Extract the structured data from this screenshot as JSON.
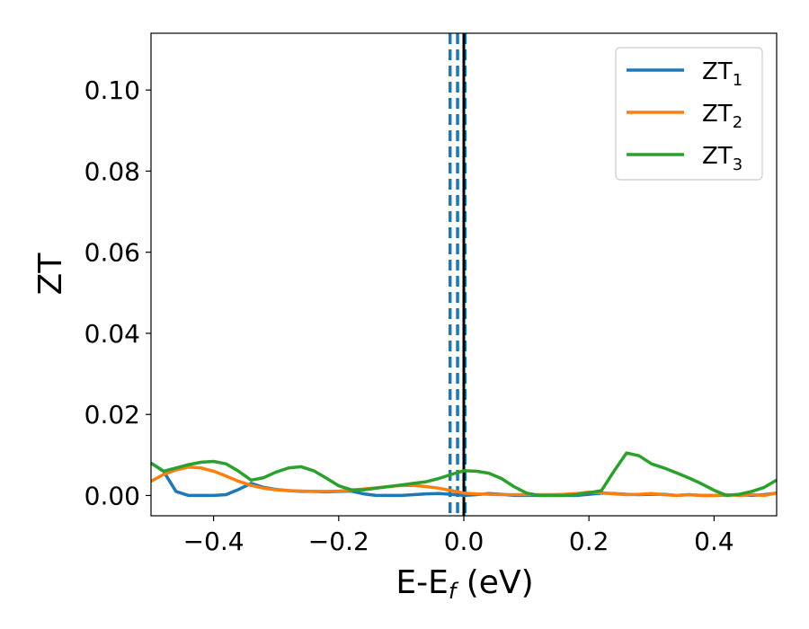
{
  "chart_data": {
    "type": "line",
    "title": "",
    "xlabel_main": "E-E",
    "xlabel_sub": "f",
    "xlabel_unit": " (eV)",
    "ylabel": "ZT",
    "xlim": [
      -0.5,
      0.5
    ],
    "ylim": [
      -0.005,
      0.114
    ],
    "xticks": [
      -0.4,
      -0.2,
      0.0,
      0.2,
      0.4
    ],
    "xtick_labels": [
      "−0.4",
      "−0.2",
      "0.0",
      "0.2",
      "0.4"
    ],
    "yticks": [
      0.0,
      0.02,
      0.04,
      0.06,
      0.08,
      0.1
    ],
    "ytick_labels": [
      "0.00",
      "0.02",
      "0.04",
      "0.06",
      "0.08",
      "0.10"
    ],
    "grid": false,
    "legend_position": "top-right",
    "vlines": [
      {
        "x": -0.022,
        "color": "#1f77b4",
        "style": "dashed"
      },
      {
        "x": -0.01,
        "color": "#1f77b4",
        "style": "dashed"
      },
      {
        "x": 0.002,
        "color": "#1f77b4",
        "style": "dashed"
      },
      {
        "x": 0.0,
        "color": "#000000",
        "style": "solid"
      }
    ],
    "series": [
      {
        "name_main": "ZT",
        "name_sub": "1",
        "color": "#1f77b4",
        "x": [
          -0.5,
          -0.48,
          -0.46,
          -0.44,
          -0.42,
          -0.4,
          -0.38,
          -0.36,
          -0.34,
          -0.32,
          -0.3,
          -0.28,
          -0.26,
          -0.24,
          -0.22,
          -0.2,
          -0.18,
          -0.16,
          -0.14,
          -0.12,
          -0.1,
          -0.08,
          -0.06,
          -0.04,
          -0.02,
          0.0,
          0.02,
          0.04,
          0.06,
          0.08,
          0.1,
          0.12,
          0.14,
          0.16,
          0.18,
          0.2,
          0.22,
          0.24,
          0.26,
          0.28,
          0.3,
          0.32,
          0.34,
          0.36,
          0.38,
          0.4,
          0.42,
          0.44,
          0.46,
          0.48,
          0.5
        ],
        "y": [
          0.008,
          0.006,
          0.001,
          0.0,
          0.0,
          0.0,
          0.0002,
          0.0015,
          0.003,
          0.002,
          0.0015,
          0.0012,
          0.001,
          0.001,
          0.0009,
          0.001,
          0.0011,
          0.0004,
          0.0,
          0.0,
          0.0,
          0.0002,
          0.0004,
          0.0005,
          0.0003,
          0.0,
          0.0002,
          0.0005,
          0.0003,
          0.0,
          0.0,
          0.0,
          0.0,
          0.0,
          0.0,
          0.0003,
          0.0006,
          0.0005,
          0.0003,
          0.0002,
          0.0003,
          0.0003,
          0.0,
          0.0002,
          0.0,
          0.0,
          0.0001,
          0.0002,
          0.0,
          0.0002,
          0.0006
        ]
      },
      {
        "name_main": "ZT",
        "name_sub": "2",
        "color": "#ff7f0e",
        "x": [
          -0.5,
          -0.48,
          -0.46,
          -0.44,
          -0.42,
          -0.4,
          -0.38,
          -0.36,
          -0.34,
          -0.32,
          -0.3,
          -0.28,
          -0.26,
          -0.24,
          -0.22,
          -0.2,
          -0.18,
          -0.16,
          -0.14,
          -0.12,
          -0.1,
          -0.08,
          -0.06,
          -0.04,
          -0.02,
          0.0,
          0.02,
          0.04,
          0.06,
          0.08,
          0.1,
          0.12,
          0.14,
          0.16,
          0.18,
          0.2,
          0.22,
          0.24,
          0.26,
          0.28,
          0.3,
          0.32,
          0.34,
          0.36,
          0.38,
          0.4,
          0.42,
          0.44,
          0.46,
          0.48,
          0.5
        ],
        "y": [
          0.0035,
          0.0052,
          0.0063,
          0.007,
          0.0068,
          0.006,
          0.0048,
          0.0035,
          0.0025,
          0.0018,
          0.0014,
          0.0012,
          0.0011,
          0.001,
          0.001,
          0.0011,
          0.0013,
          0.0016,
          0.0019,
          0.0022,
          0.0025,
          0.0025,
          0.0022,
          0.0018,
          0.0012,
          0.0006,
          0.0004,
          0.0003,
          0.0002,
          0.0002,
          0.0002,
          0.0002,
          0.0002,
          0.0003,
          0.0005,
          0.0008,
          0.0007,
          0.0004,
          0.0002,
          0.0003,
          0.0005,
          0.0002,
          0.0,
          0.0002,
          0.0,
          0.0,
          0.0002,
          0.0,
          0.0002,
          0.0,
          0.0006
        ]
      },
      {
        "name_main": "ZT",
        "name_sub": "3",
        "color": "#2ca02c",
        "x": [
          -0.5,
          -0.48,
          -0.46,
          -0.44,
          -0.42,
          -0.4,
          -0.38,
          -0.36,
          -0.34,
          -0.32,
          -0.3,
          -0.28,
          -0.26,
          -0.24,
          -0.22,
          -0.2,
          -0.18,
          -0.16,
          -0.14,
          -0.12,
          -0.1,
          -0.08,
          -0.06,
          -0.04,
          -0.02,
          0.0,
          0.02,
          0.04,
          0.06,
          0.08,
          0.1,
          0.12,
          0.14,
          0.16,
          0.18,
          0.2,
          0.22,
          0.24,
          0.26,
          0.28,
          0.3,
          0.32,
          0.34,
          0.36,
          0.38,
          0.4,
          0.42,
          0.44,
          0.46,
          0.48,
          0.5
        ],
        "y": [
          0.008,
          0.006,
          0.0068,
          0.0076,
          0.0082,
          0.0084,
          0.0078,
          0.006,
          0.0038,
          0.0044,
          0.0058,
          0.0068,
          0.0071,
          0.0061,
          0.0043,
          0.0024,
          0.0014,
          0.0014,
          0.0018,
          0.0022,
          0.0026,
          0.003,
          0.0034,
          0.0042,
          0.0052,
          0.0061,
          0.006,
          0.0055,
          0.0042,
          0.0022,
          0.0006,
          0.0,
          0.0,
          0.0,
          0.0002,
          0.0007,
          0.0012,
          0.006,
          0.0105,
          0.0098,
          0.0078,
          0.0068,
          0.0056,
          0.0043,
          0.0029,
          0.0013,
          0.0,
          0.0003,
          0.001,
          0.002,
          0.0038
        ]
      }
    ]
  }
}
